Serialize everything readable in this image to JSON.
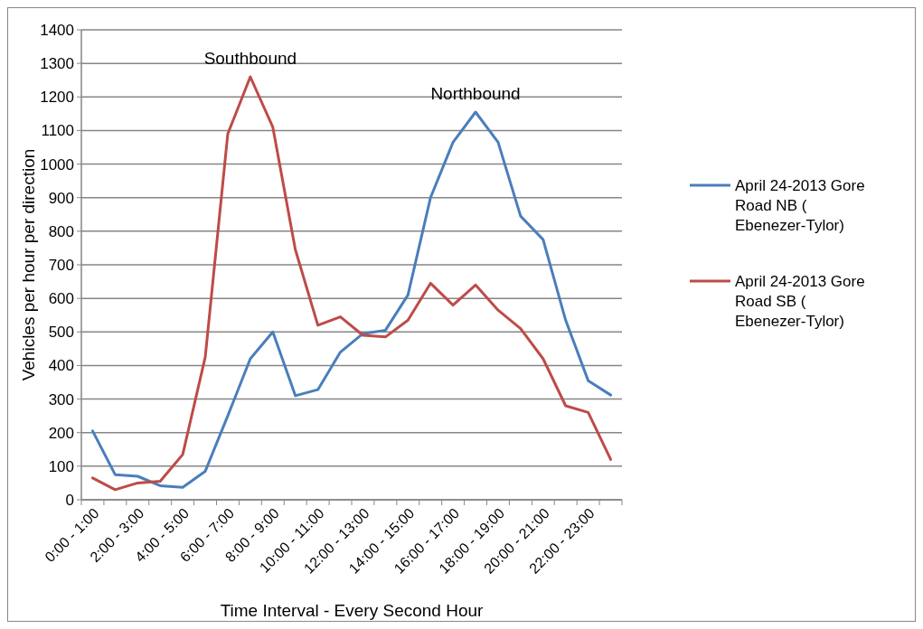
{
  "chart_data": {
    "type": "line",
    "xlabel": "Time  Interval - Every Second Hour",
    "ylabel": "Vehicles per hour per direction",
    "categories": [
      "0:00 - 1:00",
      null,
      "2:00 - 3:00",
      null,
      "4:00 - 5:00",
      null,
      "6:00 - 7:00",
      null,
      "8:00 - 9:00",
      null,
      "10:00 - 11:00",
      null,
      "12:00 - 13:00",
      null,
      "14:00 - 15:00",
      null,
      "16:00 - 17:00",
      null,
      "18:00 - 19:00",
      null,
      "20:00 - 21:00",
      null,
      "22:00 - 23:00",
      null
    ],
    "series": [
      {
        "name": "April 24-2013 Gore Road NB ( Ebenezer-Tylor)",
        "color": "#4a7ebb",
        "values": [
          205,
          75,
          70,
          42,
          37,
          85,
          250,
          420,
          500,
          310,
          328,
          440,
          495,
          505,
          610,
          900,
          1065,
          1155,
          1065,
          845,
          775,
          535,
          355,
          312
        ]
      },
      {
        "name": "April 24-2013 Gore Road SB ( Ebenezer-Tylor)",
        "color": "#be4b48",
        "values": [
          65,
          30,
          50,
          55,
          135,
          425,
          1090,
          1260,
          1110,
          745,
          520,
          545,
          490,
          485,
          535,
          645,
          580,
          640,
          565,
          510,
          420,
          280,
          260,
          120
        ]
      }
    ],
    "ylim": [
      0,
      1400
    ],
    "yticks": [
      0,
      100,
      200,
      300,
      400,
      500,
      600,
      700,
      800,
      900,
      1000,
      1100,
      1200,
      1300,
      1400
    ],
    "grid": "y",
    "legend": "right",
    "marker": "none",
    "line_style": "solid",
    "annotations": [
      "Southbound",
      "Northbound"
    ]
  }
}
